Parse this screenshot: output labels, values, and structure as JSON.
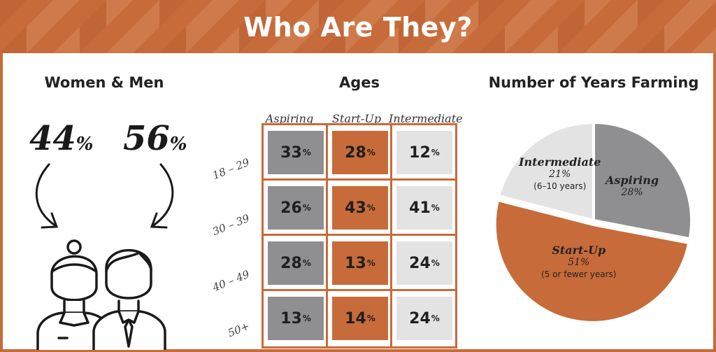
{
  "header": {
    "title": "Who Are They?"
  },
  "colors": {
    "accent": "#c76b3a",
    "grey": "#8f8f91",
    "light": "#e3e3e4",
    "dark": "#1a1a1a"
  },
  "gender": {
    "title": "Women & Men",
    "women_pct": "44",
    "men_pct": "56",
    "pct_sign": "%",
    "icons": [
      "woman-icon",
      "man-icon",
      "arrow-down-left-icon",
      "arrow-down-right-icon"
    ]
  },
  "chart_data": [
    {
      "type": "table",
      "title": "Ages",
      "columns": [
        "Aspiring",
        "Start-Up",
        "Intermediate"
      ],
      "rows": [
        "18 – 29",
        "30 – 39",
        "40 – 49",
        "50+"
      ],
      "values": [
        [
          33,
          28,
          12
        ],
        [
          26,
          43,
          41
        ],
        [
          28,
          13,
          24
        ],
        [
          13,
          14,
          24
        ]
      ],
      "unit": "%"
    },
    {
      "type": "pie",
      "title": "Number of Years Farming",
      "slices": [
        {
          "name": "Aspiring",
          "value": 28,
          "label": "28%",
          "note": "",
          "color": "#8f8f91"
        },
        {
          "name": "Start-Up",
          "value": 51,
          "label": "51%",
          "note": "(5 or fewer years)",
          "color": "#c76b3a"
        },
        {
          "name": "Intermediate",
          "value": 21,
          "label": "21%",
          "note": "(6–10 years)",
          "color": "#e3e3e4"
        }
      ]
    }
  ]
}
